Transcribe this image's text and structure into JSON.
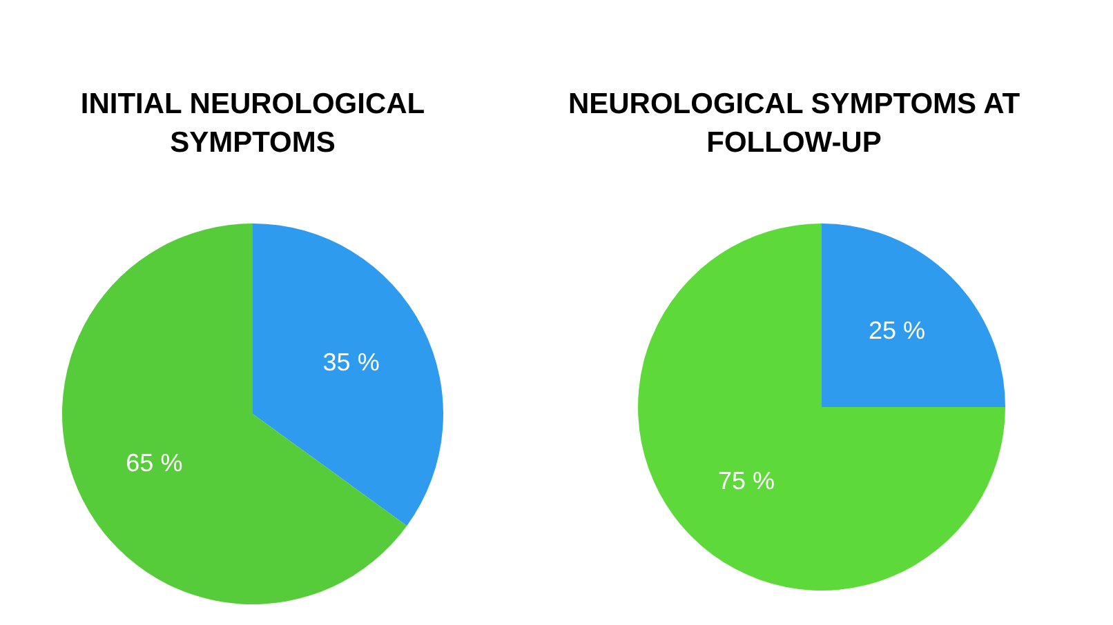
{
  "chart_data": [
    {
      "type": "pie",
      "title": "INITIAL NEUROLOGICAL SYMPTOMS",
      "categories": [
        null,
        null
      ],
      "values": [
        35,
        65
      ],
      "colors": [
        "#2e9bef",
        "#56cc3a"
      ],
      "value_labels": [
        "35 %",
        "65 %"
      ]
    },
    {
      "type": "pie",
      "title": "NEUROLOGICAL SYMPTOMS AT FOLLOW-UP",
      "categories": [
        null,
        null
      ],
      "values": [
        25,
        75
      ],
      "colors": [
        "#2e9bef",
        "#5dd93a"
      ],
      "value_labels": [
        "25 %",
        "75 %"
      ]
    }
  ]
}
